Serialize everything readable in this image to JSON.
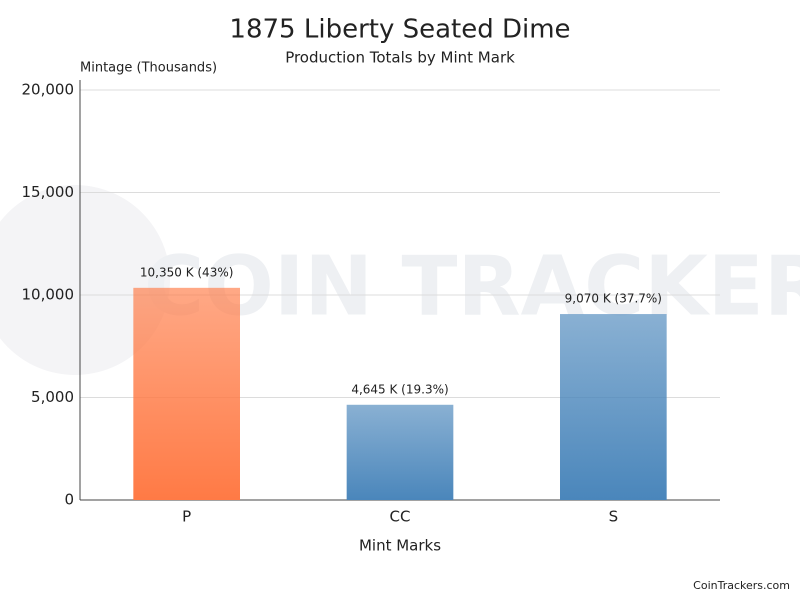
{
  "chart_data": {
    "type": "bar",
    "title": "1875 Liberty Seated Dime",
    "subtitle": "Production Totals by Mint Mark",
    "y_label": "Mintage (Thousands)",
    "x_label": "Mint Marks",
    "categories": [
      "P",
      "CC",
      "S"
    ],
    "values": [
      10350,
      4645,
      9070
    ],
    "value_labels": [
      "10,350 K (43%)",
      "4,645 K (19.3%)",
      "9,070 K (37.7%)"
    ],
    "colors": [
      "#ff7a45",
      "#4a86bb",
      "#4a86bb"
    ],
    "ylim": [
      0,
      20000
    ],
    "yticks": [
      0,
      {
        "value": 5000,
        "label": "5,000"
      },
      {
        "value": 10000,
        "label": "10,000"
      },
      {
        "value": 15000,
        "label": "15,000"
      },
      {
        "value": 20000,
        "label": "20,000"
      }
    ],
    "grid": true,
    "watermark": "COIN TRACKERS",
    "credit": "CoinTrackers.com"
  }
}
